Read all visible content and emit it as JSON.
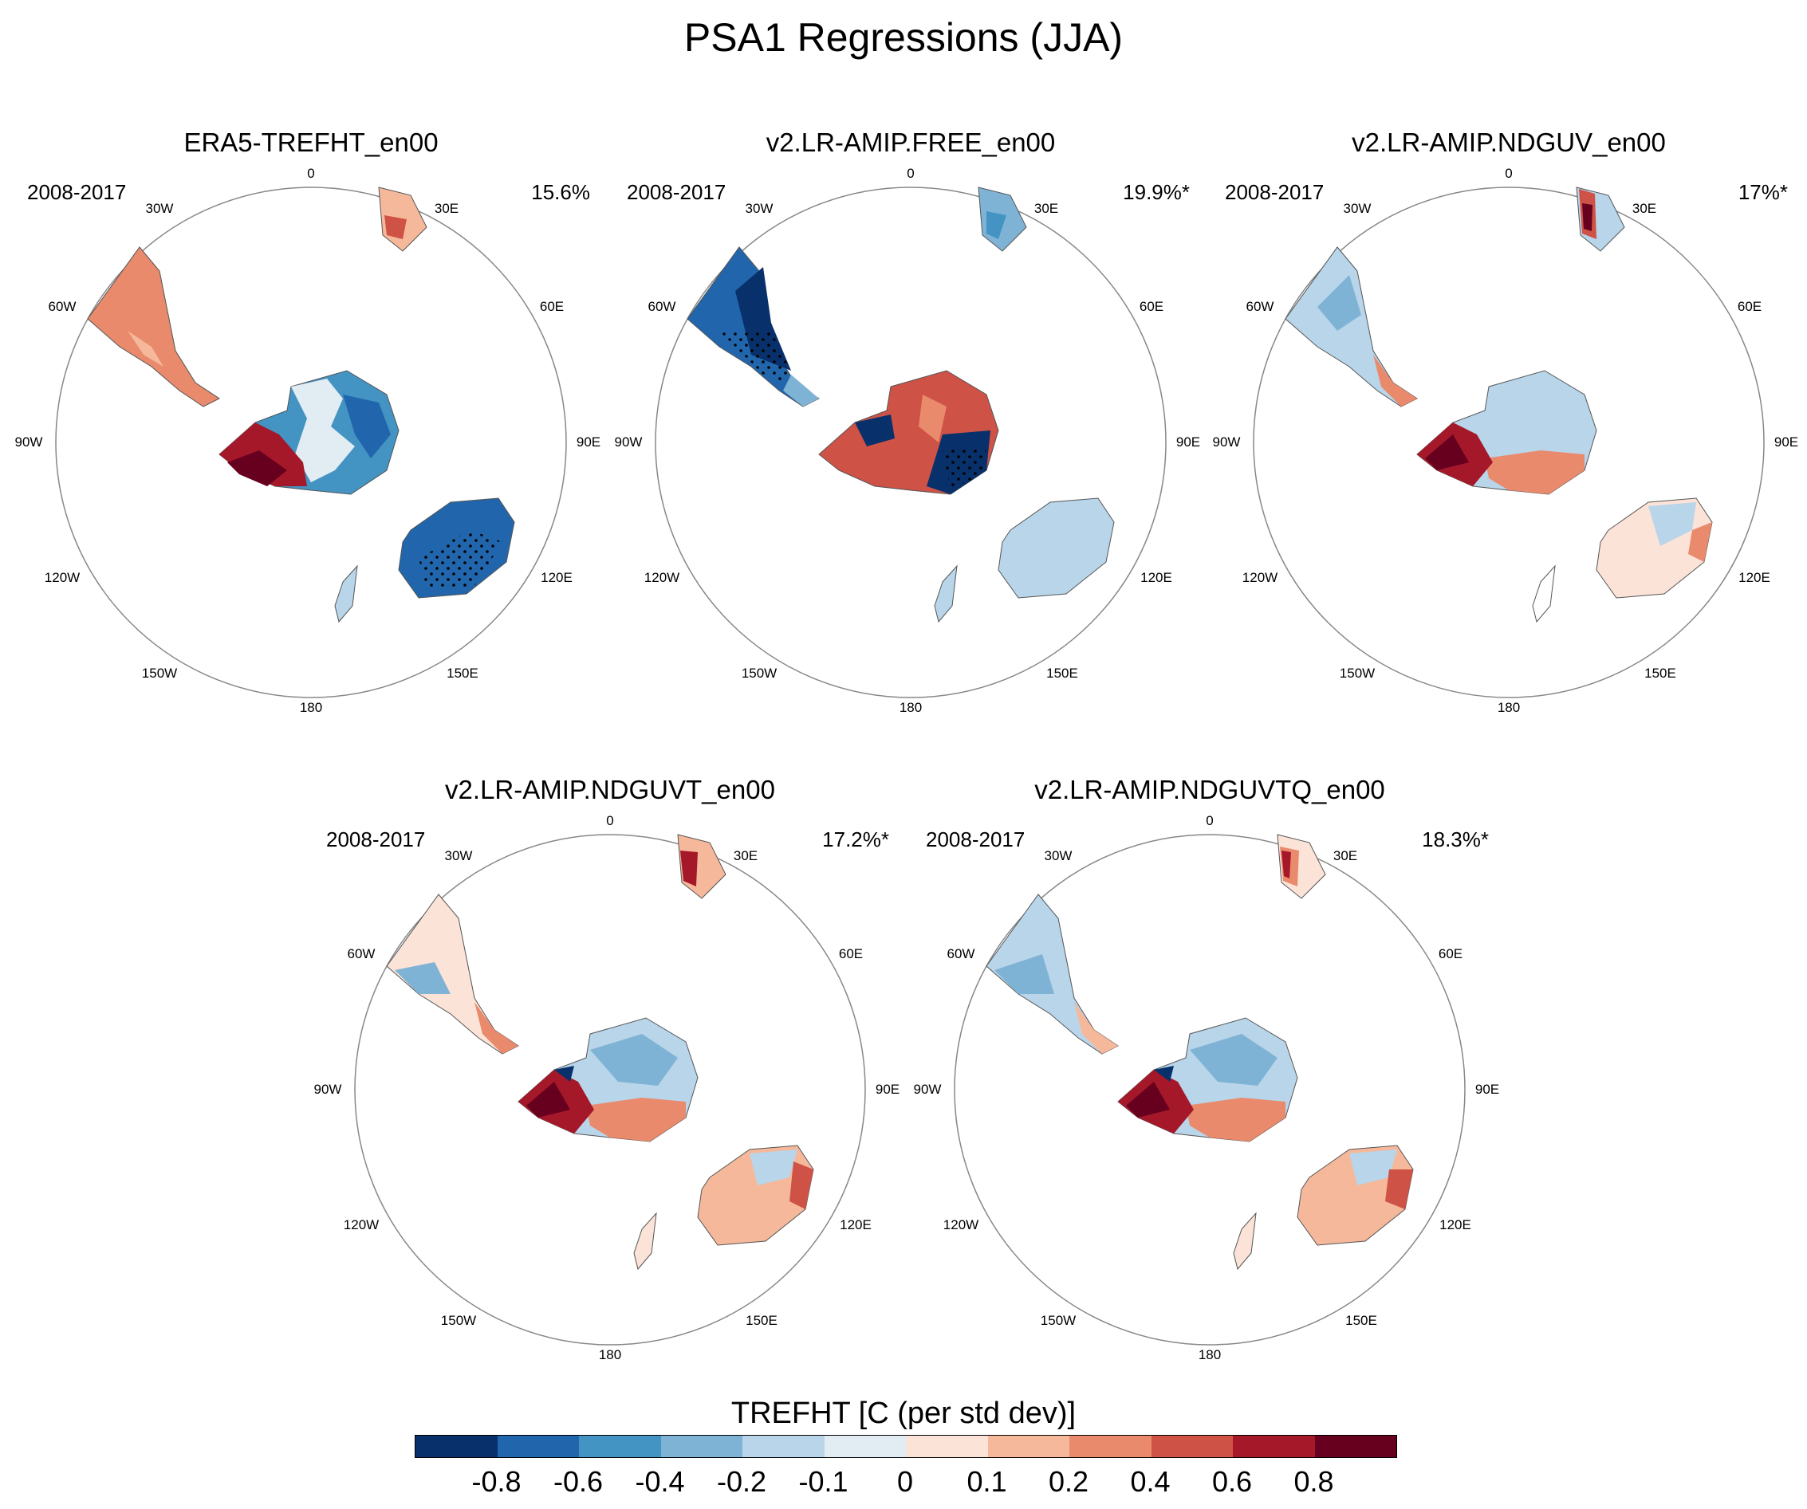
{
  "title": "PSA1 Regressions (JJA)",
  "panels": [
    {
      "title": "ERA5-TREFHT_en00",
      "period": "2008-2017",
      "percent": "15.6%"
    },
    {
      "title": "v2.LR-AMIP.FREE_en00",
      "period": "2008-2017",
      "percent": "19.9%*"
    },
    {
      "title": "v2.LR-AMIP.NDGUV_en00",
      "period": "2008-2017",
      "percent": "17%*"
    },
    {
      "title": "v2.LR-AMIP.NDGUVT_en00",
      "period": "2008-2017",
      "percent": "17.2%*"
    },
    {
      "title": "v2.LR-AMIP.NDGUVTQ_en00",
      "period": "2008-2017",
      "percent": "18.3%*"
    }
  ],
  "longitude_labels": [
    "0",
    "30E",
    "60E",
    "90E",
    "120E",
    "150E",
    "180",
    "150W",
    "120W",
    "90W",
    "60W",
    "30W"
  ],
  "colorbar": {
    "title": "TREFHT [C (per std dev)]",
    "ticks": [
      "-0.8",
      "-0.6",
      "-0.4",
      "-0.2",
      "-0.1",
      "0",
      "0.1",
      "0.2",
      "0.4",
      "0.6",
      "0.8"
    ],
    "colors": [
      "#08306b",
      "#2166ac",
      "#4393c3",
      "#7fb3d5",
      "#b8d5ea",
      "#e2ecf3",
      "#fbe3d8",
      "#f6b89a",
      "#e98a6c",
      "#cf5246",
      "#a5182a",
      "#67001f"
    ]
  }
}
